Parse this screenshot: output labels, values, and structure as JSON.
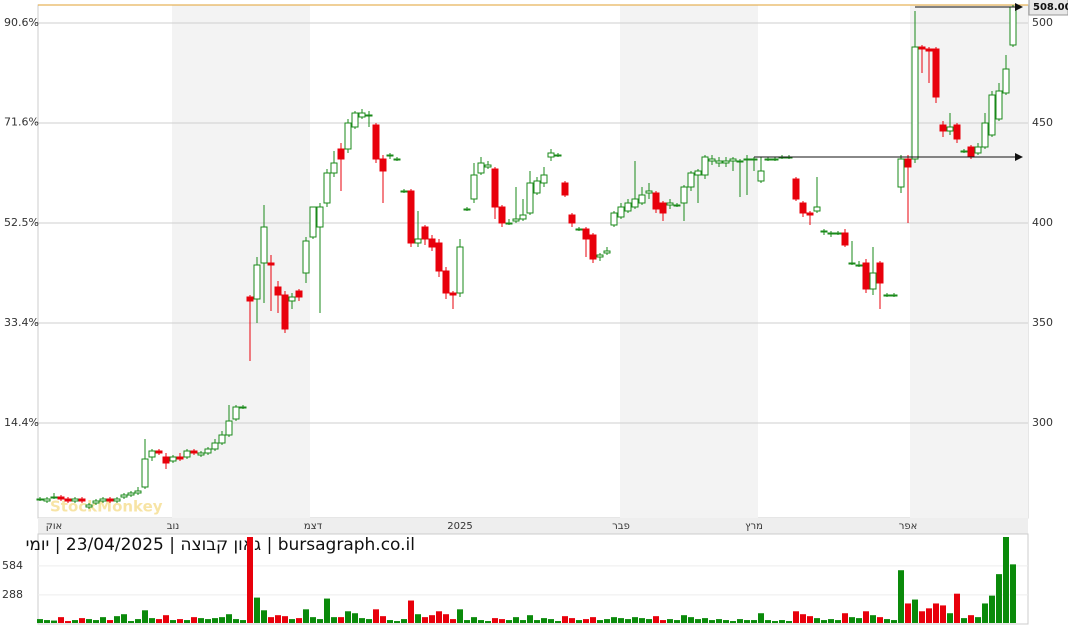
{
  "chart_data": {
    "type": "candlestick",
    "title": "bursagraph.co.il | גאון קבוצה | 23/04/2025 | יומי",
    "watermark": "StockMonkey",
    "categories": [
      null,
      null,
      "אוק",
      null,
      null,
      null,
      null,
      null,
      null,
      null,
      null,
      null,
      null,
      null,
      null,
      null,
      null,
      null,
      null,
      "נוב",
      null,
      null,
      null,
      null,
      null,
      null,
      null,
      null,
      null,
      null,
      null,
      null,
      null,
      null,
      null,
      null,
      null,
      null,
      null,
      "דצמ",
      null,
      null,
      null,
      null,
      null,
      null,
      null,
      null,
      null,
      null,
      null,
      null,
      null,
      null,
      null,
      null,
      null,
      null,
      null,
      null,
      "2025",
      null,
      null,
      null,
      null,
      null,
      null,
      null,
      null,
      null,
      null,
      null,
      null,
      null,
      null,
      null,
      null,
      null,
      null,
      null,
      null,
      null,
      null,
      "פבר",
      null,
      null,
      null,
      null,
      null,
      null,
      null,
      null,
      null,
      null,
      null,
      null,
      null,
      null,
      null,
      null,
      null,
      null,
      "מרץ",
      null,
      null,
      null,
      null,
      null,
      null,
      null,
      null,
      null,
      null,
      null,
      null,
      null,
      null,
      null,
      null,
      null,
      null,
      null,
      null,
      null,
      "אפר",
      null,
      null,
      null,
      null,
      null,
      null,
      null,
      null,
      null,
      null,
      null,
      null,
      null,
      null,
      null
    ],
    "series": [
      {
        "up_color": "#1a8a1a",
        "down_color": "#e8000b",
        "ohlc": [
          [
            262,
            263,
            261,
            262
          ],
          [
            261,
            263,
            260,
            262
          ],
          [
            263,
            265,
            262,
            263
          ],
          [
            263,
            264,
            261,
            262
          ],
          [
            262,
            263,
            260,
            261
          ],
          [
            261,
            263,
            260,
            262
          ],
          [
            262,
            263,
            260,
            261
          ],
          [
            258,
            260,
            257,
            259
          ],
          [
            260,
            262,
            259,
            261
          ],
          [
            261,
            263,
            260,
            262
          ],
          [
            262,
            263,
            260,
            261
          ],
          [
            261,
            263,
            260,
            262
          ],
          [
            263,
            265,
            262,
            264
          ],
          [
            264,
            266,
            263,
            265
          ],
          [
            265,
            268,
            264,
            266
          ],
          [
            268,
            292,
            267,
            282
          ],
          [
            283,
            287,
            281,
            286
          ],
          [
            286,
            287,
            284,
            285
          ],
          [
            283,
            285,
            277,
            280
          ],
          [
            281,
            284,
            280,
            283
          ],
          [
            283,
            285,
            281,
            282
          ],
          [
            283,
            287,
            282,
            286
          ],
          [
            286,
            287,
            284,
            285
          ],
          [
            284,
            286,
            283,
            285
          ],
          [
            285,
            288,
            284,
            287
          ],
          [
            287,
            292,
            286,
            290
          ],
          [
            290,
            296,
            289,
            294
          ],
          [
            294,
            309,
            293,
            301
          ],
          [
            302,
            309,
            301,
            308
          ],
          [
            308,
            309,
            307,
            308
          ],
          [
            363,
            364,
            331,
            361
          ],
          [
            362,
            383,
            350,
            379
          ],
          [
            380,
            409,
            360,
            398
          ],
          [
            380,
            384,
            356,
            379
          ],
          [
            368,
            371,
            355,
            364
          ],
          [
            364,
            366,
            345,
            347
          ],
          [
            361,
            365,
            357,
            363
          ],
          [
            366,
            367,
            361,
            363
          ],
          [
            375,
            393,
            370,
            391
          ],
          [
            393,
            408,
            392,
            408
          ],
          [
            398,
            410,
            355,
            408
          ],
          [
            410,
            427,
            408,
            425
          ],
          [
            425,
            436,
            423,
            430
          ],
          [
            437,
            440,
            416,
            432
          ],
          [
            437,
            452,
            435,
            450
          ],
          [
            448,
            456,
            447,
            455
          ],
          [
            453,
            457,
            452,
            455
          ],
          [
            454,
            456,
            448,
            454
          ],
          [
            449,
            450,
            430,
            432
          ],
          [
            432,
            434,
            410,
            426
          ],
          [
            434,
            435,
            432,
            434
          ],
          [
            432,
            433,
            431,
            432
          ],
          [
            416,
            417,
            415,
            416
          ],
          [
            416,
            417,
            388,
            390
          ],
          [
            390,
            406,
            388,
            392
          ],
          [
            398,
            399,
            389,
            392
          ],
          [
            392,
            394,
            386,
            388
          ],
          [
            390,
            392,
            373,
            376
          ],
          [
            376,
            378,
            362,
            365
          ],
          [
            365,
            366,
            357,
            364
          ],
          [
            365,
            392,
            363,
            388
          ],
          [
            407,
            408,
            406,
            407
          ],
          [
            412,
            430,
            410,
            424
          ],
          [
            425,
            433,
            424,
            430
          ],
          [
            428,
            431,
            427,
            429
          ],
          [
            427,
            428,
            402,
            408
          ],
          [
            408,
            409,
            398,
            400
          ],
          [
            400,
            402,
            399,
            400
          ],
          [
            401,
            418,
            400,
            402
          ],
          [
            402,
            412,
            401,
            404
          ],
          [
            405,
            426,
            404,
            420
          ],
          [
            415,
            423,
            414,
            421
          ],
          [
            420,
            428,
            418,
            424
          ],
          [
            433,
            437,
            431,
            435
          ],
          [
            434,
            435,
            433,
            434
          ],
          [
            420,
            421,
            413,
            414
          ],
          [
            404,
            405,
            398,
            400
          ],
          [
            397,
            398,
            396,
            397
          ],
          [
            397,
            398,
            383,
            392
          ],
          [
            394,
            395,
            380,
            382
          ],
          [
            383,
            385,
            381,
            384
          ],
          [
            385,
            388,
            384,
            386
          ],
          [
            399,
            406,
            398,
            405
          ],
          [
            403,
            410,
            402,
            408
          ],
          [
            406,
            412,
            405,
            410
          ],
          [
            408,
            431,
            407,
            412
          ],
          [
            410,
            418,
            409,
            414
          ],
          [
            415,
            420,
            412,
            416
          ],
          [
            415,
            416,
            405,
            407
          ],
          [
            410,
            411,
            401,
            405
          ],
          [
            409,
            412,
            407,
            410
          ],
          [
            409,
            410,
            408,
            409
          ],
          [
            410,
            419,
            401,
            418
          ],
          [
            418,
            426,
            416,
            425
          ],
          [
            424,
            427,
            410,
            426
          ],
          [
            424,
            434,
            422,
            433
          ],
          [
            431,
            434,
            429,
            432
          ],
          [
            430,
            433,
            428,
            431
          ],
          [
            430,
            433,
            428,
            431
          ],
          [
            431,
            433,
            426,
            432
          ],
          [
            431,
            432,
            413,
            431
          ],
          [
            432,
            434,
            414,
            432
          ],
          [
            432,
            433,
            426,
            432
          ],
          [
            421,
            433,
            420,
            426
          ],
          [
            432,
            433,
            431,
            432
          ],
          [
            432,
            433,
            431,
            432
          ],
          [
            433,
            434,
            432,
            433
          ],
          [
            433,
            434,
            432,
            433
          ],
          [
            422,
            423,
            411,
            412
          ],
          [
            410,
            411,
            403,
            405
          ],
          [
            405,
            406,
            399,
            404
          ],
          [
            406,
            423,
            405,
            408
          ],
          [
            396,
            397,
            394,
            396
          ],
          [
            395,
            396,
            393,
            395
          ],
          [
            395,
            396,
            394,
            395
          ],
          [
            395,
            397,
            388,
            389
          ],
          [
            380,
            391,
            379,
            380
          ],
          [
            379,
            381,
            378,
            379
          ],
          [
            380,
            382,
            365,
            367
          ],
          [
            367,
            388,
            364,
            375
          ],
          [
            380,
            381,
            357,
            370
          ],
          [
            364,
            365,
            363,
            364
          ],
          [
            364,
            365,
            363,
            364
          ],
          [
            418,
            434,
            415,
            432
          ],
          [
            432,
            434,
            400,
            428
          ],
          [
            432,
            506,
            430,
            488
          ],
          [
            488,
            489,
            475,
            487
          ],
          [
            487,
            488,
            470,
            486
          ],
          [
            487,
            488,
            460,
            463
          ],
          [
            449,
            451,
            443,
            446
          ],
          [
            446,
            455,
            444,
            448
          ],
          [
            449,
            450,
            440,
            442
          ],
          [
            436,
            437,
            435,
            436
          ],
          [
            438,
            439,
            432,
            433
          ],
          [
            435,
            440,
            434,
            438
          ],
          [
            438,
            455,
            437,
            450
          ],
          [
            444,
            466,
            443,
            464
          ],
          [
            452,
            470,
            451,
            466
          ],
          [
            465,
            484,
            464,
            477
          ],
          [
            489,
            509,
            488,
            508
          ]
        ]
      }
    ],
    "ylim": [
      252.5,
      509
    ],
    "yticks": [
      300,
      350,
      400,
      450,
      500
    ],
    "y2lim": [
      -3.7,
      94
    ],
    "y2ticks": [
      {
        "value": 14.4,
        "label": "14.4%"
      },
      {
        "value": 33.4,
        "label": "33.4%"
      },
      {
        "value": 52.5,
        "label": "52.5%"
      },
      {
        "value": 71.6,
        "label": "71.6%"
      },
      {
        "value": 90.6,
        "label": "90.6%"
      }
    ],
    "last_price": {
      "value": 508,
      "label": "508.00"
    },
    "reference_lines": [
      433
    ],
    "high_line": 509,
    "grid": true,
    "volume": {
      "values": [
        40,
        30,
        25,
        60,
        20,
        30,
        50,
        40,
        30,
        60,
        30,
        70,
        90,
        20,
        40,
        130,
        50,
        40,
        80,
        30,
        40,
        30,
        60,
        50,
        40,
        50,
        60,
        90,
        40,
        30,
        880,
        260,
        130,
        60,
        80,
        70,
        40,
        50,
        140,
        60,
        40,
        250,
        60,
        60,
        120,
        100,
        50,
        40,
        140,
        70,
        30,
        20,
        40,
        230,
        90,
        60,
        80,
        120,
        90,
        40,
        140,
        30,
        60,
        30,
        20,
        50,
        40,
        30,
        60,
        30,
        80,
        30,
        50,
        40,
        20,
        70,
        50,
        30,
        40,
        60,
        30,
        40,
        60,
        50,
        40,
        60,
        50,
        40,
        70,
        30,
        40,
        30,
        80,
        60,
        40,
        50,
        30,
        40,
        30,
        20,
        40,
        30,
        30,
        100,
        30,
        20,
        30,
        20,
        120,
        90,
        70,
        50,
        30,
        40,
        30,
        100,
        60,
        50,
        120,
        80,
        60,
        40,
        30,
        540,
        200,
        240,
        120,
        150,
        200,
        180,
        100,
        300,
        50,
        80,
        60,
        200,
        280,
        500,
        880,
        600
      ],
      "ylim": [
        0,
        880
      ],
      "yticks": [
        288,
        584
      ]
    }
  }
}
